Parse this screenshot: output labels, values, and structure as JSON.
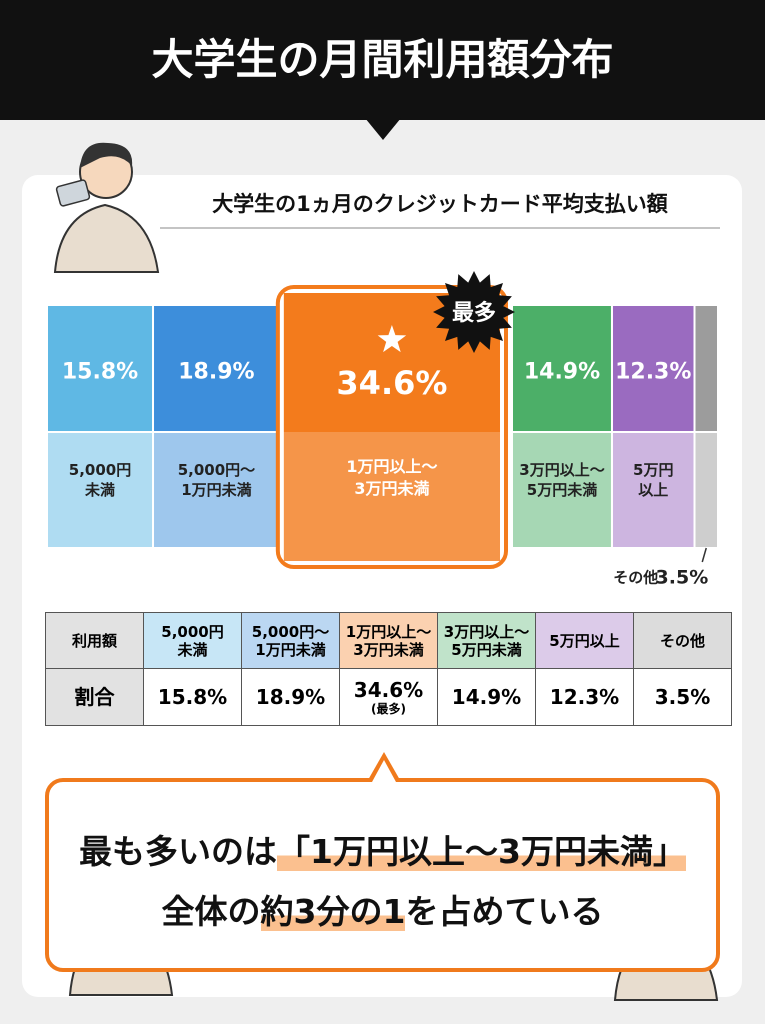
{
  "header": {
    "title": "大学生の月間利用額分布"
  },
  "chart_data": {
    "type": "bar",
    "title": "大学生の1ヵ月のクレジットカード平均支払い額",
    "categories": [
      "5,000円\n未満",
      "5,000円～\n1万円未満",
      "1万円以上～\n3万円未満",
      "3万円以上～\n5万円未満",
      "5万円\n以上",
      "その他"
    ],
    "values": [
      15.8,
      18.9,
      34.6,
      14.9,
      12.3,
      3.5
    ],
    "value_labels": [
      "15.8%",
      "18.9%",
      "34.6%",
      "14.9%",
      "12.3%",
      "3.5%"
    ],
    "colors": [
      "#5fb8e4",
      "#3d8edb",
      "#f37b1c",
      "#4caf68",
      "#9a6bc0",
      "#9c9c9c"
    ],
    "xlim": [
      0,
      100
    ],
    "annotation": "最多"
  },
  "table": {
    "rows": [
      [
        "利用額",
        "5,000円\n未満",
        "5,000円～\n1万円未満",
        "1万円以上～\n3万円未満",
        "3万円以上～\n5万円未満",
        "5万円以上",
        "その他"
      ],
      [
        "割合",
        "15.8%",
        "18.9%",
        [
          "34.6%",
          "(最多)"
        ],
        "14.9%",
        "12.3%",
        "3.5%"
      ]
    ]
  },
  "callout": {
    "lines": [
      [
        "最も多いのは",
        "「1万円以上～3万円未満」",
        ""
      ],
      [
        "全体の",
        "約3分の1",
        "を占めている"
      ]
    ]
  }
}
